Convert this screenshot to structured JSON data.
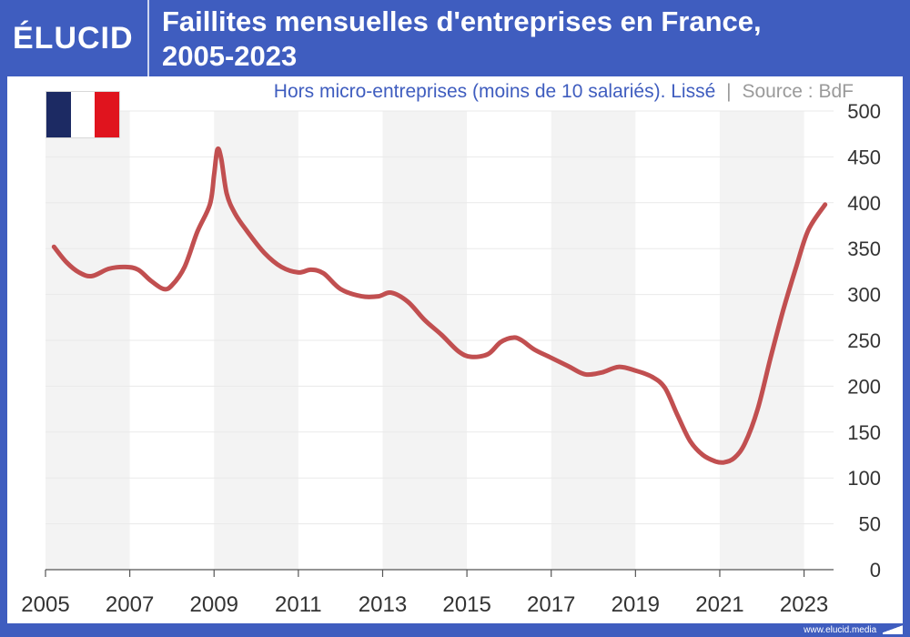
{
  "header": {
    "logo": "ÉLUCID",
    "title_line1": "Faillites mensuelles d'entreprises en France,",
    "title_line2": "2005-2023"
  },
  "subtitle": {
    "text": "Hors micro-entreprises (moins de 10 salariés). Lissé",
    "separator": "|",
    "source": "Source : BdF"
  },
  "flag_icon": "france-flag-icon",
  "footer": {
    "url": "www.elucid.media",
    "icon": "elucid-mark-icon"
  },
  "colors": {
    "brand": "#3f5dbf",
    "line": "#c14f50",
    "band": "#f3f3f3",
    "grid": "#e9e9e9",
    "axis_text": "#333333"
  },
  "chart_data": {
    "type": "line",
    "title": "Faillites mensuelles d'entreprises en France, 2005-2023",
    "subtitle": "Hors micro-entreprises (moins de 10 salariés). Lissé",
    "source": "Source : BdF",
    "xlabel": "",
    "ylabel": "",
    "xlim": [
      2005,
      2023.7
    ],
    "ylim": [
      0,
      500
    ],
    "x_ticks": [
      2005,
      2007,
      2009,
      2011,
      2013,
      2015,
      2017,
      2019,
      2021,
      2023
    ],
    "x_tick_labels": [
      "2005",
      "2007",
      "2009",
      "2011",
      "2013",
      "2015",
      "2017",
      "2019",
      "2021",
      "2023"
    ],
    "y_ticks": [
      0,
      50,
      100,
      150,
      200,
      250,
      300,
      350,
      400,
      450,
      500
    ],
    "y_axis_position": "right",
    "grid": true,
    "shaded_periods": [
      [
        2005,
        2007
      ],
      [
        2009,
        2011
      ],
      [
        2013,
        2015
      ],
      [
        2017,
        2019
      ],
      [
        2021,
        2023
      ]
    ],
    "series": [
      {
        "x": [
          2005.2,
          2005.5,
          2005.8,
          2006.1,
          2006.5,
          2006.9,
          2007.2,
          2007.5,
          2007.8,
          2008.0,
          2008.3,
          2008.6,
          2008.9,
          2009.0,
          2009.08,
          2009.17,
          2009.3,
          2009.5,
          2009.8,
          2010.2,
          2010.6,
          2011.0,
          2011.3,
          2011.6,
          2012.0,
          2012.5,
          2012.9,
          2013.2,
          2013.6,
          2014.0,
          2014.4,
          2014.8,
          2015.1,
          2015.5,
          2015.8,
          2016.1,
          2016.3,
          2016.6,
          2017.0,
          2017.4,
          2017.8,
          2018.2,
          2018.6,
          2019.0,
          2019.4,
          2019.7,
          2020.0,
          2020.3,
          2020.6,
          2020.9,
          2021.1,
          2021.35,
          2021.6,
          2021.9,
          2022.2,
          2022.5,
          2022.8,
          2023.1,
          2023.5
        ],
        "values": [
          352,
          335,
          324,
          320,
          328,
          330,
          327,
          315,
          306,
          310,
          330,
          368,
          398,
          430,
          458,
          448,
          410,
          388,
          368,
          345,
          330,
          324,
          327,
          323,
          306,
          298,
          298,
          302,
          292,
          272,
          256,
          238,
          232,
          235,
          248,
          253,
          250,
          240,
          231,
          222,
          213,
          215,
          221,
          217,
          210,
          198,
          168,
          140,
          125,
          118,
          117,
          122,
          138,
          175,
          230,
          282,
          328,
          370,
          398
        ]
      }
    ]
  }
}
